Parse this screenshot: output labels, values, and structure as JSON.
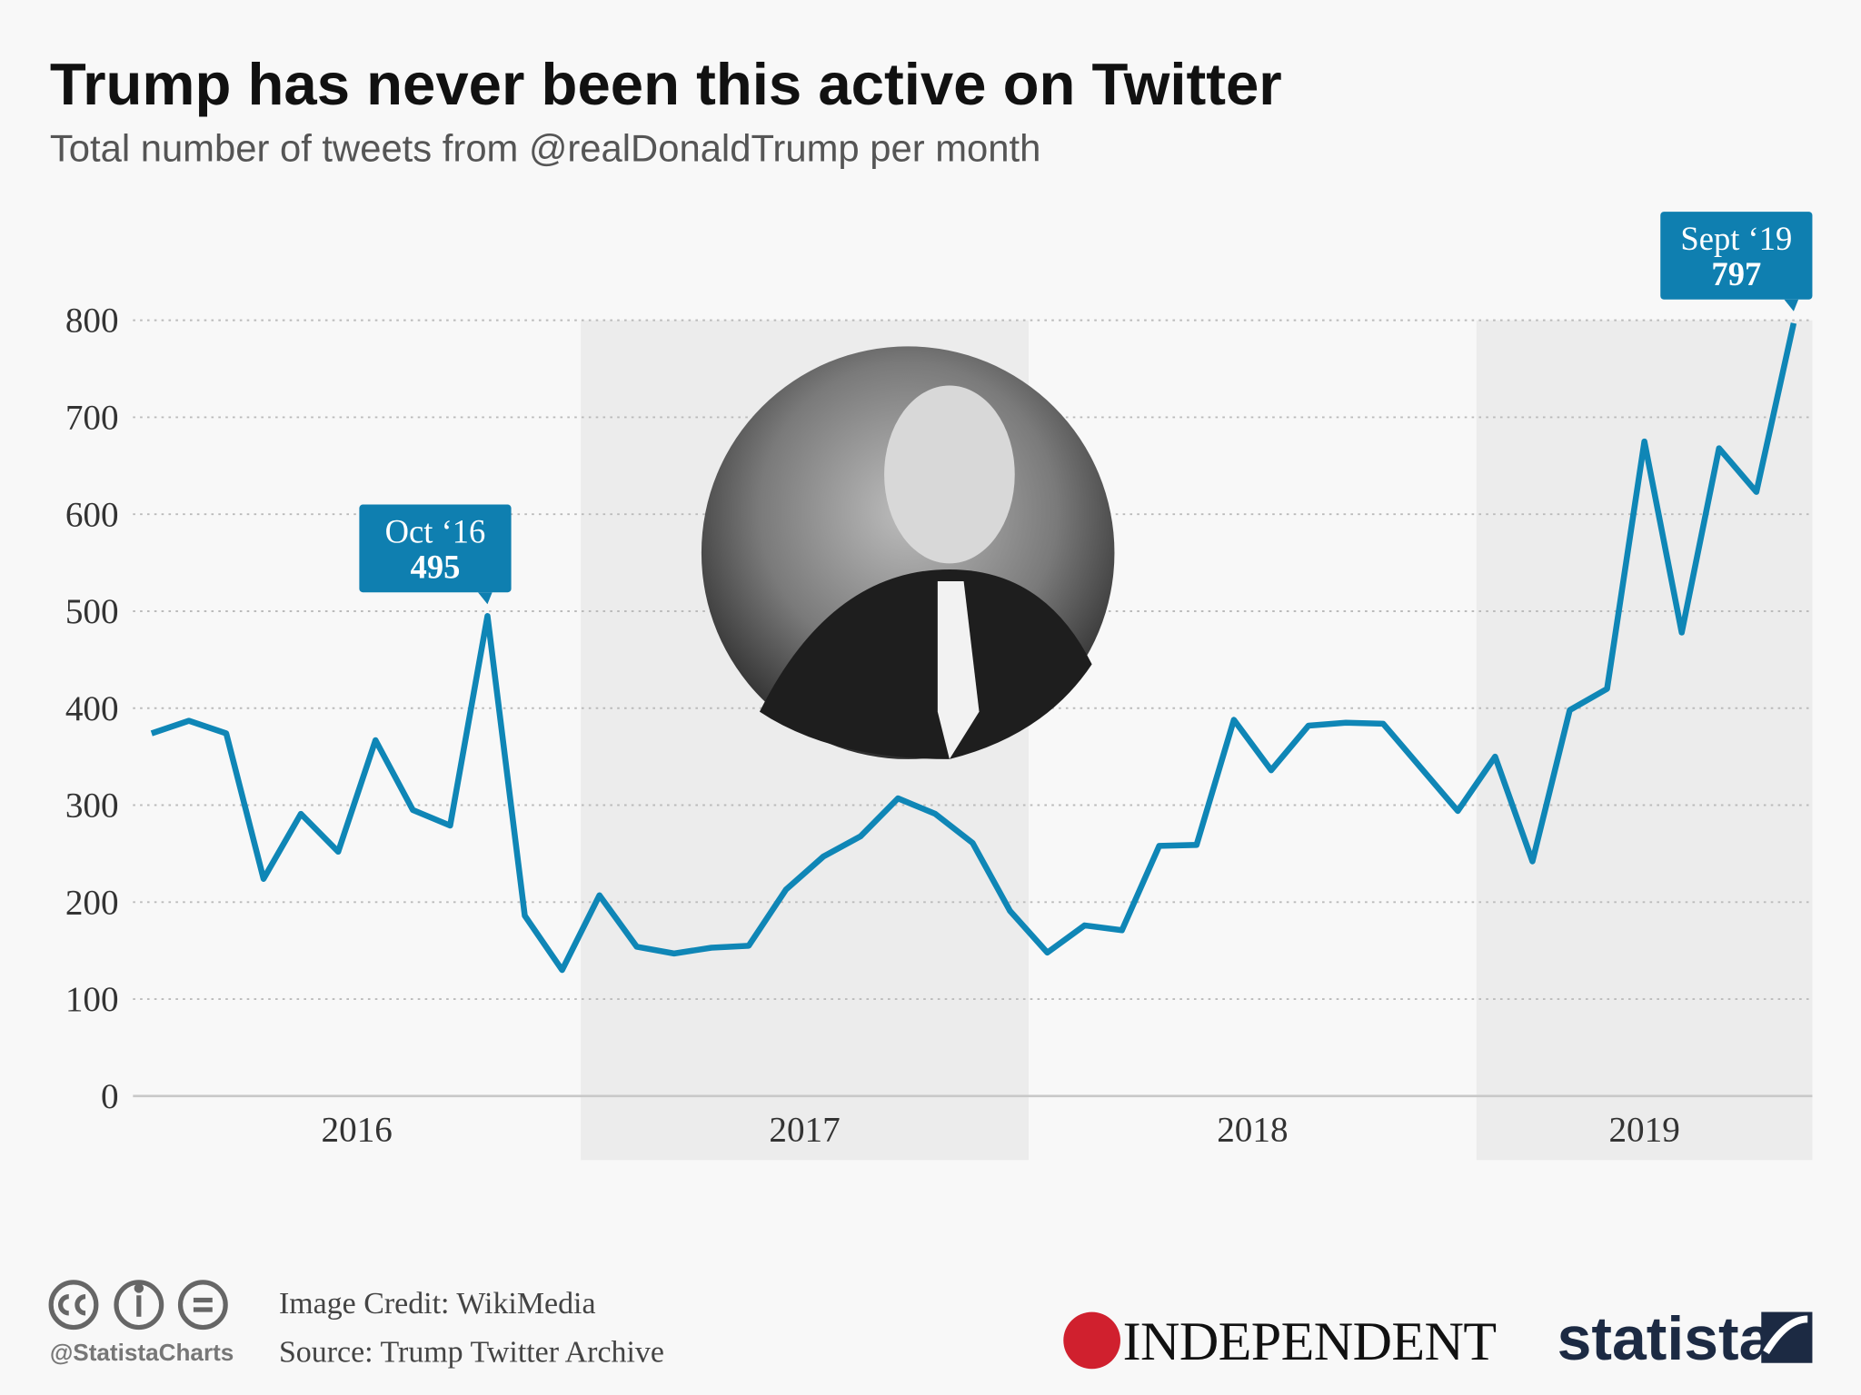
{
  "chart_data": {
    "type": "line",
    "title": "Trump has never been this active on Twitter",
    "subtitle": "Total number of tweets from @realDonaldTrump per month",
    "x_labels": [
      "2016",
      "2017",
      "2018",
      "2019"
    ],
    "values": [
      374,
      387,
      374,
      224,
      291,
      252,
      367,
      295,
      279,
      495,
      186,
      130,
      207,
      154,
      147,
      153,
      155,
      213,
      247,
      268,
      307,
      291,
      261,
      191,
      148,
      176,
      171,
      258,
      259,
      388,
      336,
      382,
      385,
      384,
      339,
      294,
      350,
      242,
      398,
      420,
      675,
      478,
      668,
      623,
      797
    ],
    "point_labels": [
      null,
      null,
      null,
      null,
      null,
      null,
      null,
      null,
      null,
      "Oct ‘16",
      null,
      null,
      null,
      null,
      null,
      null,
      null,
      null,
      null,
      null,
      null,
      null,
      null,
      null,
      null,
      null,
      null,
      null,
      null,
      null,
      null,
      null,
      null,
      null,
      null,
      null,
      null,
      null,
      null,
      null,
      null,
      null,
      null,
      null,
      "Sept ‘19"
    ],
    "color": "#0f86b6",
    "ylim": [
      0,
      800
    ],
    "yticks": [
      0,
      100,
      200,
      300,
      400,
      500,
      600,
      700,
      800
    ],
    "grid": true
  },
  "footer": {
    "handle": "@StatistaCharts",
    "image_credit": "Image Credit: WikiMedia",
    "source": "Source: Trump Twitter Archive",
    "partner": "INDEPENDENT",
    "brand": "statista"
  }
}
